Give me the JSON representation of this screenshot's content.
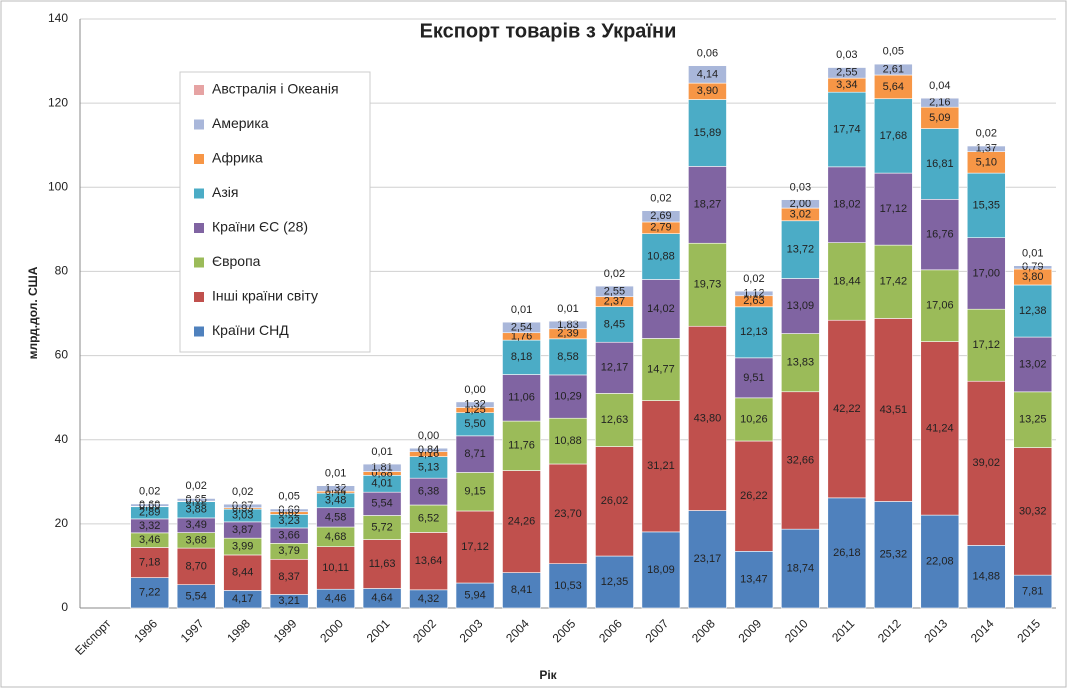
{
  "chart_data": {
    "type": "stacked_bar",
    "title": "Експорт товарів з України",
    "x_label": "Рік",
    "y_label": "млрд.дол. США",
    "categories": [
      "Експорт",
      "1996",
      "1997",
      "1998",
      "1999",
      "2000",
      "2001",
      "2002",
      "2003",
      "2004",
      "2005",
      "2006",
      "2007",
      "2008",
      "2009",
      "2010",
      "2011",
      "2012",
      "2013",
      "2014",
      "2015"
    ],
    "ylim": [
      0,
      140
    ],
    "yticks": [
      0,
      20,
      40,
      60,
      80,
      100,
      120,
      140
    ],
    "grid": true,
    "legend": "upper left",
    "series": [
      {
        "name": "Країни СНД",
        "color": "#4f81bd",
        "values": [
          null,
          7.22,
          5.54,
          4.17,
          3.21,
          4.46,
          4.64,
          4.32,
          5.94,
          8.41,
          10.53,
          12.35,
          18.09,
          23.17,
          13.47,
          18.74,
          26.18,
          25.32,
          22.08,
          14.88,
          7.81
        ],
        "value_labels": [
          null,
          "7,22",
          "5,54",
          "4,17",
          "3,21",
          "4,46",
          "4,64",
          "4,32",
          "5,94",
          "8,41",
          "10,53",
          "12,35",
          "18,09",
          "23,17",
          "13,47",
          "18,74",
          "26,18",
          "25,32",
          "22,08",
          "14,88",
          "7,81"
        ]
      },
      {
        "name": "Інші країни світу",
        "color": "#c0504d",
        "values": [
          null,
          7.18,
          8.7,
          8.44,
          8.37,
          10.11,
          11.63,
          13.64,
          17.12,
          24.26,
          23.7,
          26.02,
          31.21,
          43.8,
          26.22,
          32.66,
          42.22,
          43.51,
          41.24,
          39.02,
          30.32
        ],
        "value_labels": [
          null,
          "7,18",
          "8,70",
          "8,44",
          "8,37",
          "10,11",
          "11,63",
          "13,64",
          "17,12",
          "24,26",
          "23,70",
          "26,02",
          "31,21",
          "43,80",
          "26,22",
          "32,66",
          "42,22",
          "43,51",
          "41,24",
          "39,02",
          "30,32"
        ]
      },
      {
        "name": "Європа",
        "color": "#9bbb59",
        "values": [
          null,
          3.46,
          3.68,
          3.99,
          3.79,
          4.68,
          5.72,
          6.52,
          9.15,
          11.76,
          10.88,
          12.63,
          14.77,
          19.73,
          10.26,
          13.83,
          18.44,
          17.42,
          17.06,
          17.12,
          13.25
        ],
        "value_labels": [
          null,
          "3,46",
          "3,68",
          "3,99",
          "3,79",
          "4,68",
          "5,72",
          "6,52",
          "9,15",
          "11,76",
          "10,88",
          "12,63",
          "14,77",
          "19,73",
          "10,26",
          "13,83",
          "18,44",
          "17,42",
          "17,06",
          "17,12",
          "13,25"
        ]
      },
      {
        "name": "Країни ЄС (28)",
        "color": "#8064a2",
        "values": [
          null,
          3.32,
          3.49,
          3.87,
          3.66,
          4.58,
          5.54,
          6.38,
          8.71,
          11.06,
          10.29,
          12.17,
          14.02,
          18.27,
          9.51,
          13.09,
          18.02,
          17.12,
          16.76,
          17.0,
          13.02
        ],
        "value_labels": [
          null,
          "3,32",
          "3,49",
          "3,87",
          "3,66",
          "4,58",
          "5,54",
          "6,38",
          "8,71",
          "11,06",
          "10,29",
          "12,17",
          "14,02",
          "18,27",
          "9,51",
          "13,09",
          "18,02",
          "17,12",
          "16,76",
          "17,00",
          "13,02"
        ]
      },
      {
        "name": "Азія",
        "color": "#4bacc6",
        "values": [
          null,
          2.89,
          3.88,
          3.03,
          3.23,
          3.48,
          4.01,
          5.13,
          5.5,
          8.18,
          8.58,
          8.45,
          10.88,
          15.89,
          12.13,
          13.72,
          17.74,
          17.68,
          16.81,
          15.35,
          12.38
        ],
        "value_labels": [
          null,
          "2,89",
          "3,88",
          "3,03",
          "3,23",
          "3,48",
          "4,01",
          "5,13",
          "5,50",
          "8,18",
          "8,58",
          "8,45",
          "10,88",
          "15,89",
          "12,13",
          "13,72",
          "17,74",
          "17,68",
          "16,81",
          "15,35",
          "12,38"
        ]
      },
      {
        "name": "Африка",
        "color": "#f79646",
        "values": [
          null,
          0.09,
          0.12,
          0.33,
          0.62,
          0.44,
          0.88,
          1.16,
          1.25,
          1.76,
          2.39,
          2.37,
          2.79,
          3.9,
          2.63,
          3.02,
          3.34,
          5.64,
          5.09,
          5.1,
          3.8
        ],
        "value_labels": [
          null,
          "0,09",
          "0,12",
          "0,33",
          "0,62",
          "0,44",
          "0,88",
          "1,16",
          "1,25",
          "1,76",
          "2,39",
          "2,37",
          "2,79",
          "3,90",
          "2,63",
          "3,02",
          "3,34",
          "5,64",
          "5,09",
          "5,10",
          "3,80"
        ]
      },
      {
        "name": "Америка",
        "color": "#a9b7da",
        "values": [
          null,
          0.6,
          0.65,
          0.87,
          0.69,
          1.32,
          1.81,
          0.84,
          1.32,
          2.54,
          1.83,
          2.55,
          2.69,
          4.14,
          1.12,
          2.0,
          2.55,
          2.61,
          2.16,
          1.37,
          0.79
        ],
        "value_labels": [
          null,
          "0,60",
          "0,65",
          "0,87",
          "0,69",
          "1,32",
          "1,81",
          "0,84",
          "1,32",
          "2,54",
          "1,83",
          "2,55",
          "2,69",
          "4,14",
          "1,12",
          "2,00",
          "2,55",
          "2,61",
          "2,16",
          "1,37",
          "0,79"
        ]
      },
      {
        "name": "Австралія і Океанія",
        "color": "#e6a3a3",
        "values": [
          null,
          0.02,
          0.02,
          0.02,
          0.05,
          0.01,
          0.01,
          0.0,
          0.0,
          0.01,
          0.01,
          0.02,
          0.02,
          0.06,
          0.02,
          0.03,
          0.03,
          0.05,
          0.04,
          0.02,
          0.01
        ],
        "value_labels": [
          null,
          "0,02",
          "0,02",
          "0,02",
          "0,05",
          "0,01",
          "0,01",
          "0,00",
          "0,00",
          "0,01",
          "0,01",
          "0,02",
          "0,02",
          "0,06",
          "0,02",
          "0,03",
          "0,03",
          "0,05",
          "0,04",
          "0,02",
          "0,01"
        ]
      }
    ]
  }
}
